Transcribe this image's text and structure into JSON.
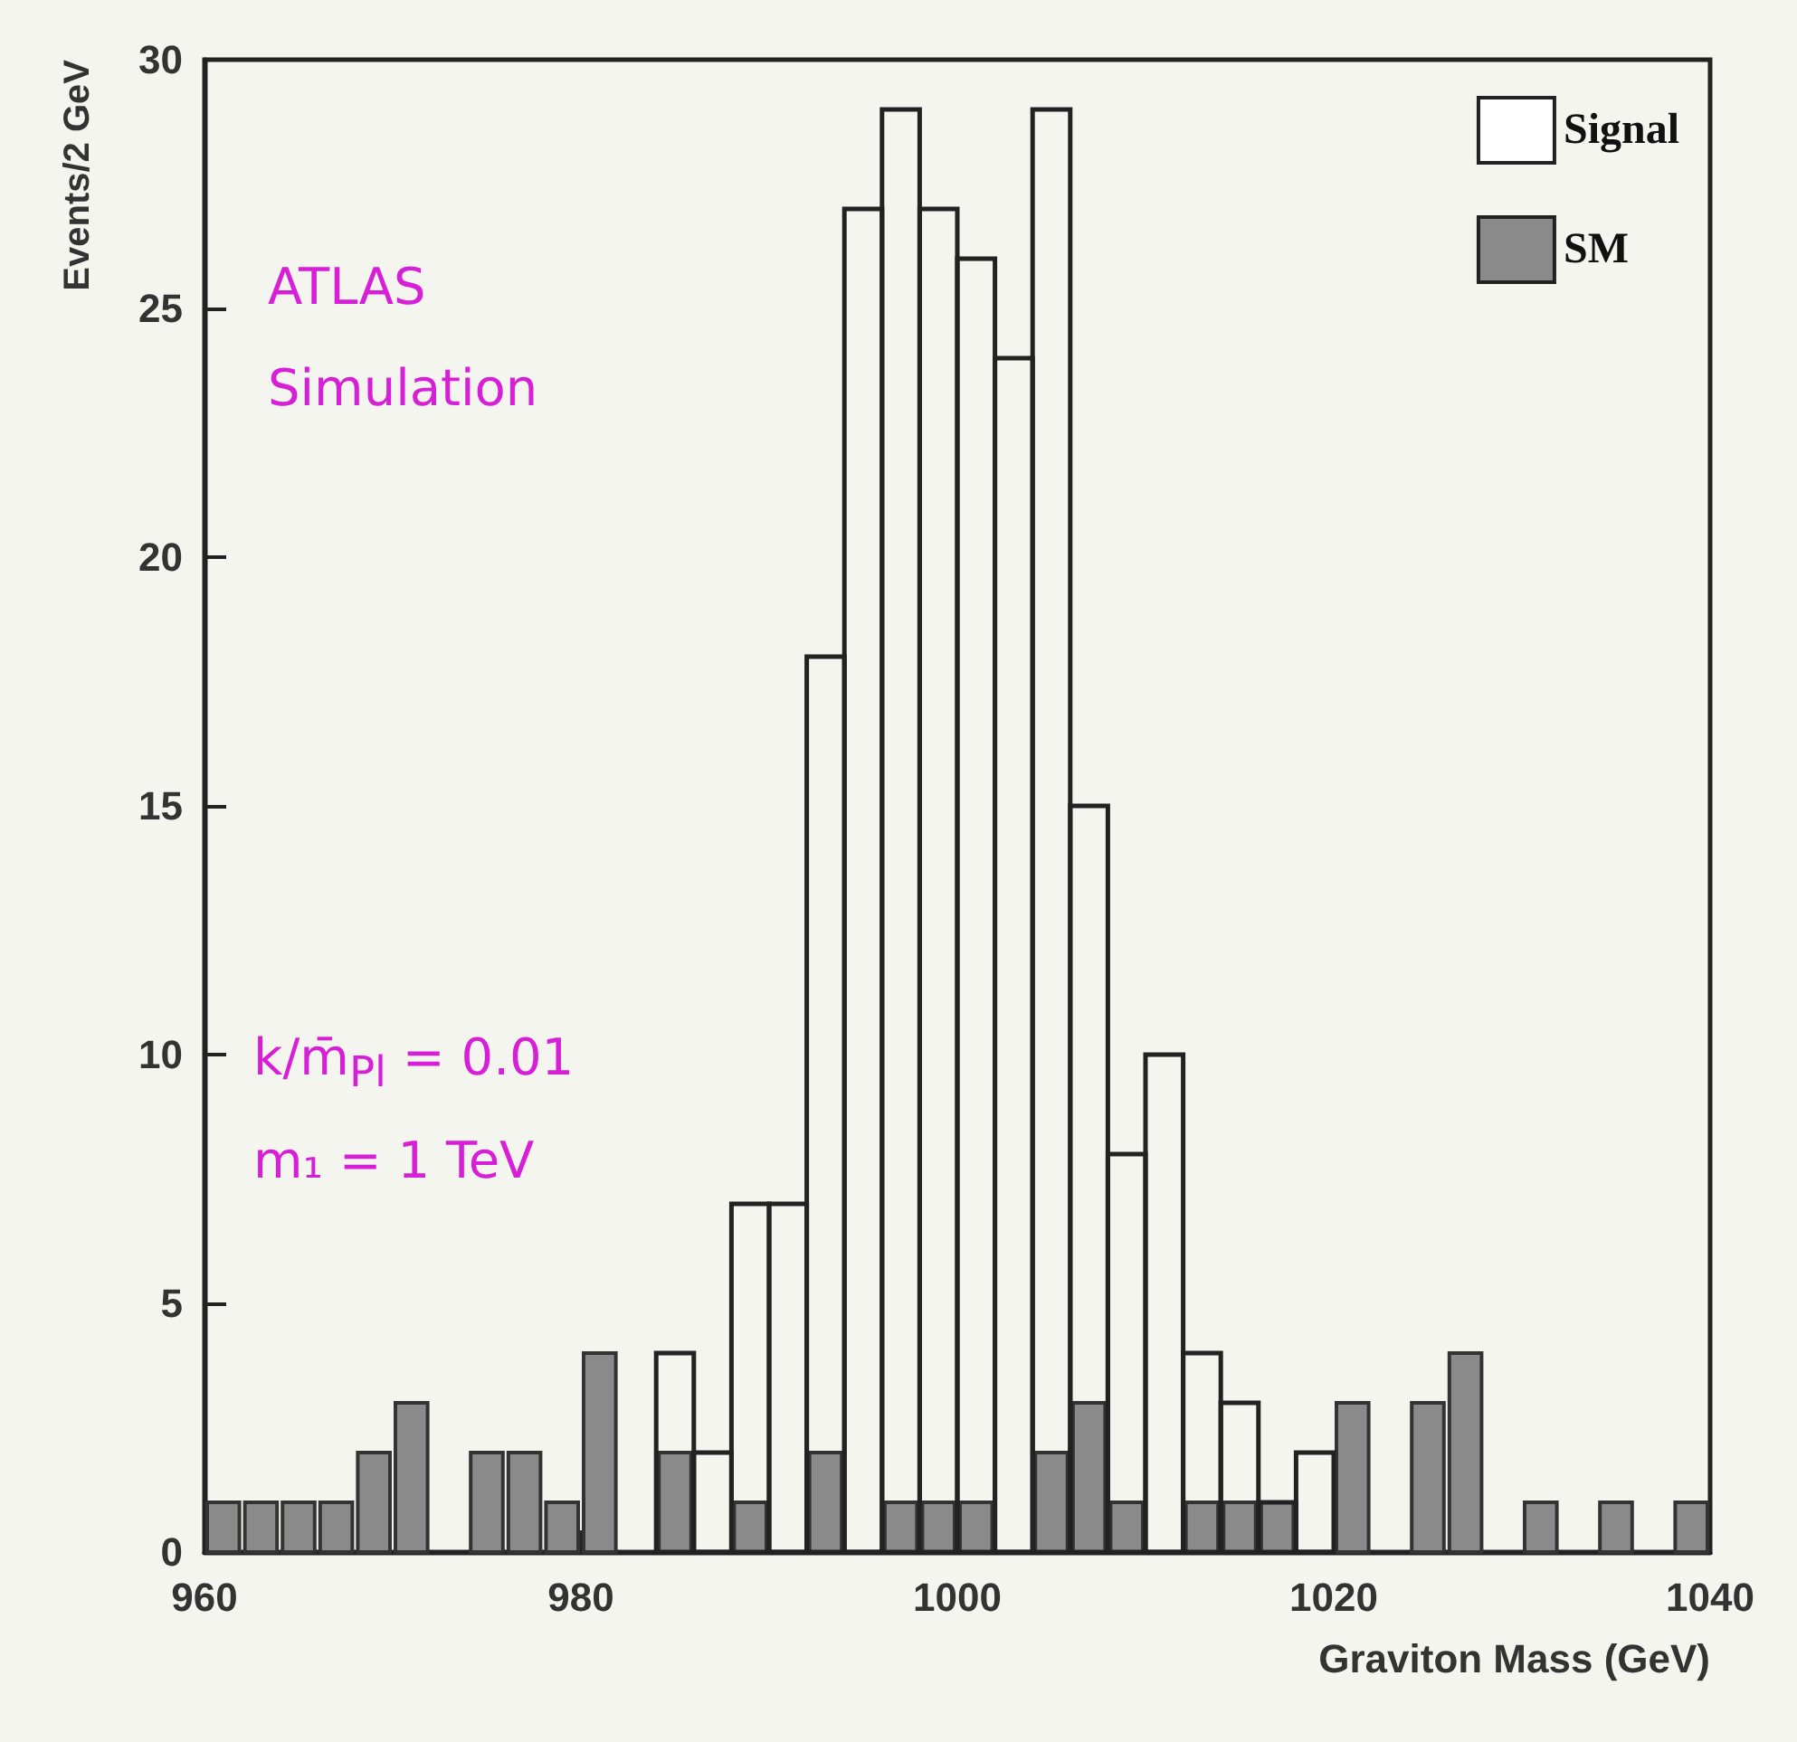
{
  "chart_data": {
    "type": "histogram",
    "xlabel": "Graviton Mass (GeV)",
    "ylabel": "Events/2 GeV",
    "bins": [
      960,
      962,
      964,
      966,
      968,
      970,
      972,
      974,
      976,
      978,
      980,
      982,
      984,
      986,
      988,
      990,
      992,
      994,
      996,
      998,
      1000,
      1002,
      1004,
      1006,
      1008,
      1010,
      1012,
      1014,
      1016,
      1018,
      1020,
      1022,
      1024,
      1026,
      1028,
      1030,
      1032,
      1034,
      1036,
      1038,
      1040
    ],
    "series": [
      {
        "name": "Signal",
        "color": "#222222",
        "values": [
          0,
          0,
          0,
          0,
          0,
          0,
          0,
          0,
          0,
          0,
          0,
          0,
          4,
          2,
          7,
          7,
          18,
          27,
          29,
          27,
          26,
          24,
          29,
          15,
          8,
          10,
          4,
          3,
          1,
          2,
          0,
          0,
          0,
          0,
          0,
          0,
          0,
          0,
          0,
          0
        ]
      },
      {
        "name": "SM",
        "color": "#8a8a8a",
        "values": [
          1,
          1,
          1,
          1,
          2,
          3,
          0,
          2,
          2,
          1,
          4,
          0,
          2,
          0,
          1,
          0,
          2,
          0,
          1,
          1,
          1,
          0,
          2,
          3,
          1,
          0,
          1,
          1,
          1,
          0,
          3,
          0,
          3,
          4,
          0,
          1,
          0,
          1,
          0,
          1
        ]
      }
    ],
    "xlim": [
      960,
      1040
    ],
    "xticks": [
      960,
      980,
      1000,
      1020,
      1040
    ],
    "ylim": [
      0,
      30
    ],
    "yticks": [
      0,
      5,
      10,
      15,
      20,
      25,
      30
    ],
    "legend": "top right",
    "grid": false,
    "annotations": [
      "ATLAS",
      "Simulation",
      "k/m̄$_{Pl}$ = 0.01",
      "m₁ = 1 TeV"
    ]
  }
}
